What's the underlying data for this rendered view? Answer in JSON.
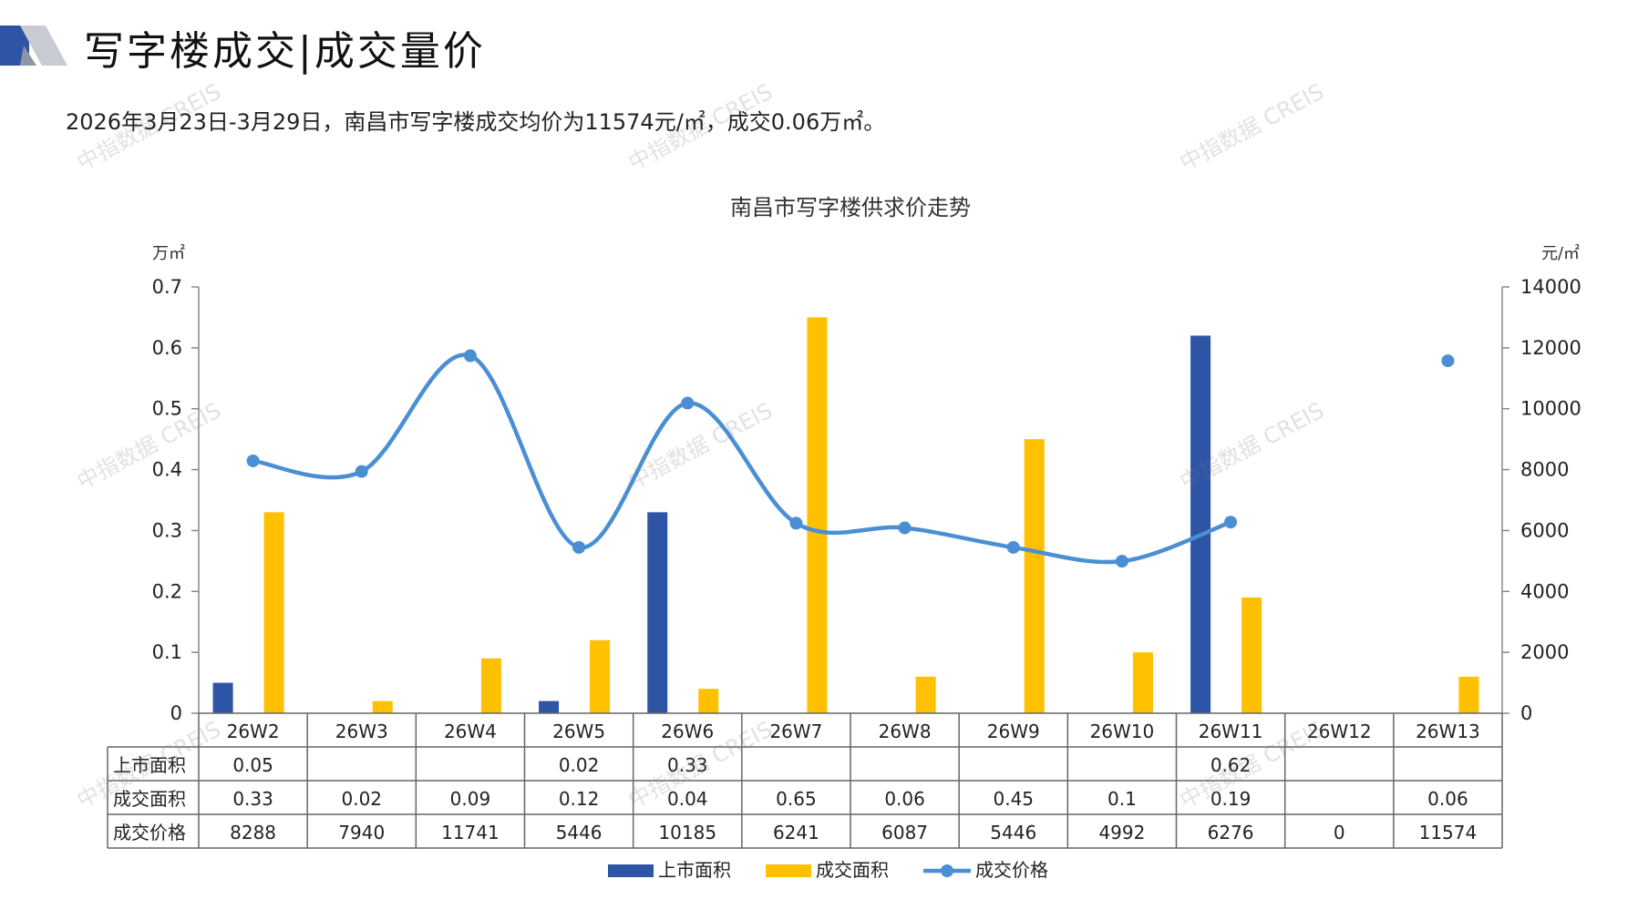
{
  "header": {
    "title": "写字楼成交|成交量价",
    "summary": "2026年3月23日-3月29日，南昌市写字楼成交均价为11574元/㎡，成交0.06万㎡。",
    "watermark": "中指数据 CREIS"
  },
  "chart_data": {
    "type": "bar",
    "title": "南昌市写字楼供求价走势",
    "ylabel_left": "万㎡",
    "ylabel_right": "元/㎡",
    "ylim_left": [
      0,
      0.7
    ],
    "ylim_right": [
      0,
      14000
    ],
    "yticks_left": [
      "0",
      "0.1",
      "0.2",
      "0.3",
      "0.4",
      "0.5",
      "0.6",
      "0.7"
    ],
    "yticks_right": [
      "0",
      "2000",
      "4000",
      "6000",
      "8000",
      "10000",
      "12000",
      "14000"
    ],
    "categories": [
      "26W2",
      "26W3",
      "26W4",
      "26W5",
      "26W6",
      "26W7",
      "26W8",
      "26W9",
      "26W10",
      "26W11",
      "26W12",
      "26W13"
    ],
    "series": [
      {
        "name": "上市面积",
        "type": "bar",
        "axis": "left",
        "color": "#2E55A5",
        "values": [
          0.05,
          null,
          null,
          0.02,
          0.33,
          null,
          null,
          null,
          null,
          0.62,
          null,
          null
        ]
      },
      {
        "name": "成交面积",
        "type": "bar",
        "axis": "left",
        "color": "#FFC000",
        "values": [
          0.33,
          0.02,
          0.09,
          0.12,
          0.04,
          0.65,
          0.06,
          0.45,
          0.1,
          0.19,
          null,
          0.06
        ]
      },
      {
        "name": "成交价格",
        "type": "line",
        "axis": "right",
        "color": "#4A8FD4",
        "values": [
          8288,
          7940,
          11741,
          5446,
          10185,
          6241,
          6087,
          5446,
          4992,
          6276,
          0,
          11574
        ]
      }
    ],
    "table": {
      "rows": [
        {
          "label": "上市面积",
          "cells": [
            "0.05",
            "",
            "",
            "0.02",
            "0.33",
            "",
            "",
            "",
            "",
            "0.62",
            "",
            ""
          ]
        },
        {
          "label": "成交面积",
          "cells": [
            "0.33",
            "0.02",
            "0.09",
            "0.12",
            "0.04",
            "0.65",
            "0.06",
            "0.45",
            "0.1",
            "0.19",
            "",
            "0.06"
          ]
        },
        {
          "label": "成交价格",
          "cells": [
            "8288",
            "7940",
            "11741",
            "5446",
            "10185",
            "6241",
            "6087",
            "5446",
            "4992",
            "6276",
            "0",
            "11574"
          ]
        }
      ]
    },
    "legend_position": "bottom"
  }
}
